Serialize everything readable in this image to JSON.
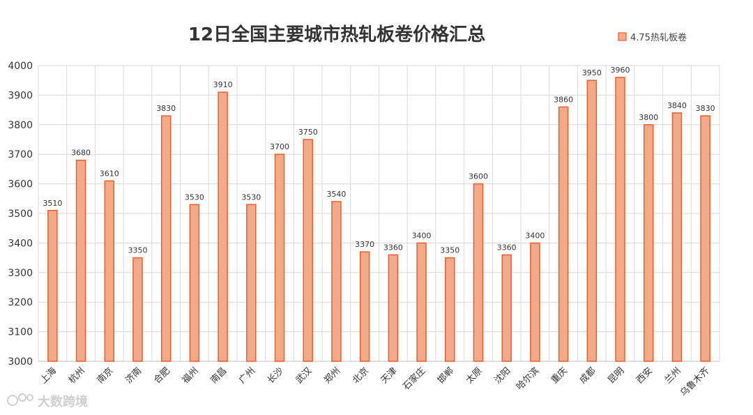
{
  "chart_data": {
    "type": "bar",
    "title": "12日全国主要城市热轧板卷价格汇总",
    "categories": [
      "上海",
      "杭州",
      "南京",
      "济南",
      "合肥",
      "福州",
      "南昌",
      "广州",
      "长沙",
      "武汉",
      "郑州",
      "北京",
      "天津",
      "石家庄",
      "邯郸",
      "太原",
      "沈阳",
      "哈尔滨",
      "重庆",
      "成都",
      "昆明",
      "西安",
      "兰州",
      "乌鲁木齐"
    ],
    "series": [
      {
        "name": "4.75热轧板卷",
        "values": [
          3510,
          3680,
          3610,
          3350,
          3830,
          3530,
          3910,
          3530,
          3700,
          3750,
          3540,
          3370,
          3360,
          3400,
          3350,
          3600,
          3360,
          3400,
          3860,
          3950,
          3960,
          3800,
          3840,
          3830
        ]
      }
    ],
    "ylim": [
      3000,
      4000
    ],
    "yticks": [
      3000,
      3100,
      3200,
      3300,
      3400,
      3500,
      3600,
      3700,
      3800,
      3900,
      4000
    ],
    "grid": true,
    "legend_position": "top-right",
    "colors": {
      "bar_fill": "#f4a988",
      "bar_stroke": "#e8602c",
      "grid": "#d9d9d9"
    }
  },
  "watermark": {
    "text": "大数跨境",
    "icon": "logo-icon"
  }
}
